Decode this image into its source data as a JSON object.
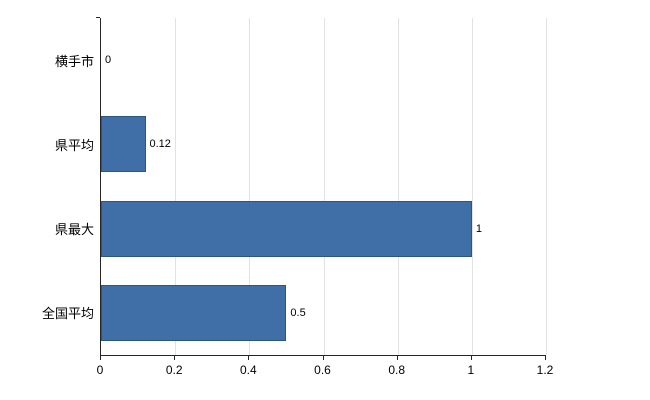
{
  "chart_data": {
    "type": "bar",
    "orientation": "horizontal",
    "categories": [
      "横手市",
      "県平均",
      "県最大",
      "全国平均"
    ],
    "values": [
      0,
      0.12,
      1,
      0.5
    ],
    "value_labels": [
      "0",
      "0.12",
      "1",
      "0.5"
    ],
    "title": "",
    "xlabel": "",
    "ylabel": "",
    "xlim": [
      0,
      1.2
    ],
    "x_ticks": [
      0,
      0.2,
      0.4,
      0.6,
      0.8,
      1,
      1.2
    ],
    "x_tick_labels": [
      "0",
      "0.2",
      "0.4",
      "0.6",
      "0.8",
      "1",
      "1.2"
    ],
    "bar_color": "#3f6fa6",
    "bar_border_color": "#2d5580",
    "grid": true,
    "grid_color": "#e2e2e2",
    "legend": "none"
  }
}
